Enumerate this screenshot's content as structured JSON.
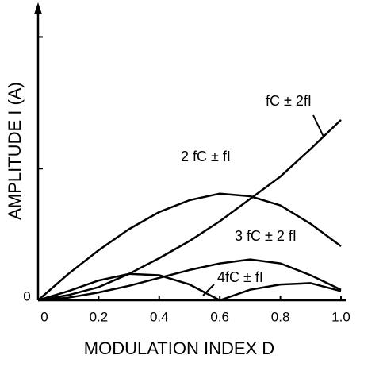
{
  "chart_data": {
    "type": "line",
    "xlabel": "MODULATION INDEX  D",
    "ylabel": "AMPLITUDE I (A)",
    "x": [
      0,
      0.1,
      0.2,
      0.3,
      0.4,
      0.5,
      0.6,
      0.7,
      0.8,
      0.9,
      1.0
    ],
    "xlim": [
      0,
      1.0
    ],
    "xticks": [
      0,
      0.2,
      0.4,
      0.6,
      0.8,
      {
        "value": 1.0,
        "label": "1.0"
      }
    ],
    "ylim": [
      0,
      2.25
    ],
    "yticks": [
      0
    ],
    "y_minor_ticks": [
      1,
      2
    ],
    "series": [
      {
        "name": "fC ± 2fI",
        "color": "#000000",
        "values": [
          0,
          0.04,
          0.1,
          0.2,
          0.32,
          0.45,
          0.6,
          0.77,
          0.94,
          1.15,
          1.37
        ]
      },
      {
        "name": "2 fC ± fI",
        "color": "#000000",
        "values": [
          0,
          0.2,
          0.38,
          0.54,
          0.67,
          0.76,
          0.81,
          0.79,
          0.72,
          0.58,
          0.41
        ]
      },
      {
        "name": "3 fC ± 2 fI",
        "color": "#000000",
        "values": [
          0,
          0.02,
          0.06,
          0.11,
          0.17,
          0.23,
          0.28,
          0.31,
          0.28,
          0.19,
          0.08
        ]
      },
      {
        "name": "4fC ± fI",
        "color": "#000000",
        "values": [
          0,
          0.07,
          0.15,
          0.2,
          0.19,
          0.12,
          0,
          0.08,
          0.12,
          0.13,
          0.07
        ]
      }
    ]
  }
}
